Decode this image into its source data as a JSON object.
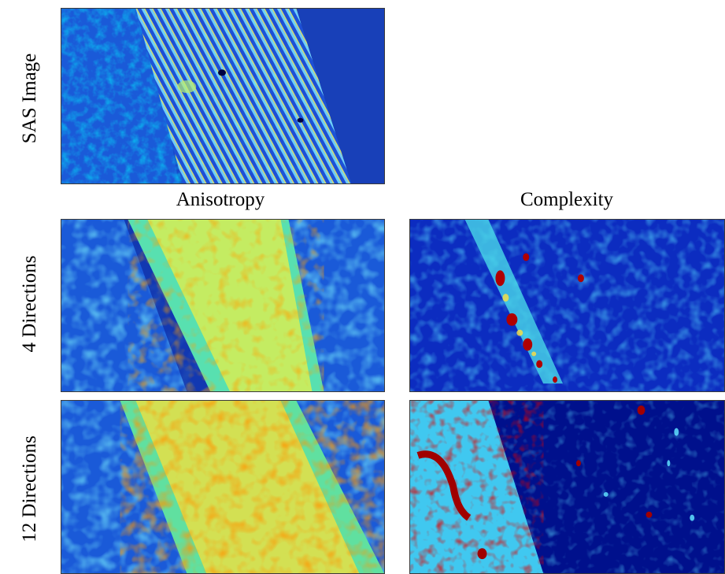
{
  "figure": {
    "row_labels": {
      "sas": "SAS Image",
      "four": "4 Directions",
      "twelve": "12 Directions"
    },
    "column_labels": {
      "anisotropy": "Anisotropy",
      "complexity": "Complexity"
    },
    "colormap": [
      "#00007f",
      "#0000ff",
      "#0080ff",
      "#00ffff",
      "#80ff80",
      "#ffff00",
      "#ff8000",
      "#ff0000",
      "#7f0000"
    ]
  }
}
